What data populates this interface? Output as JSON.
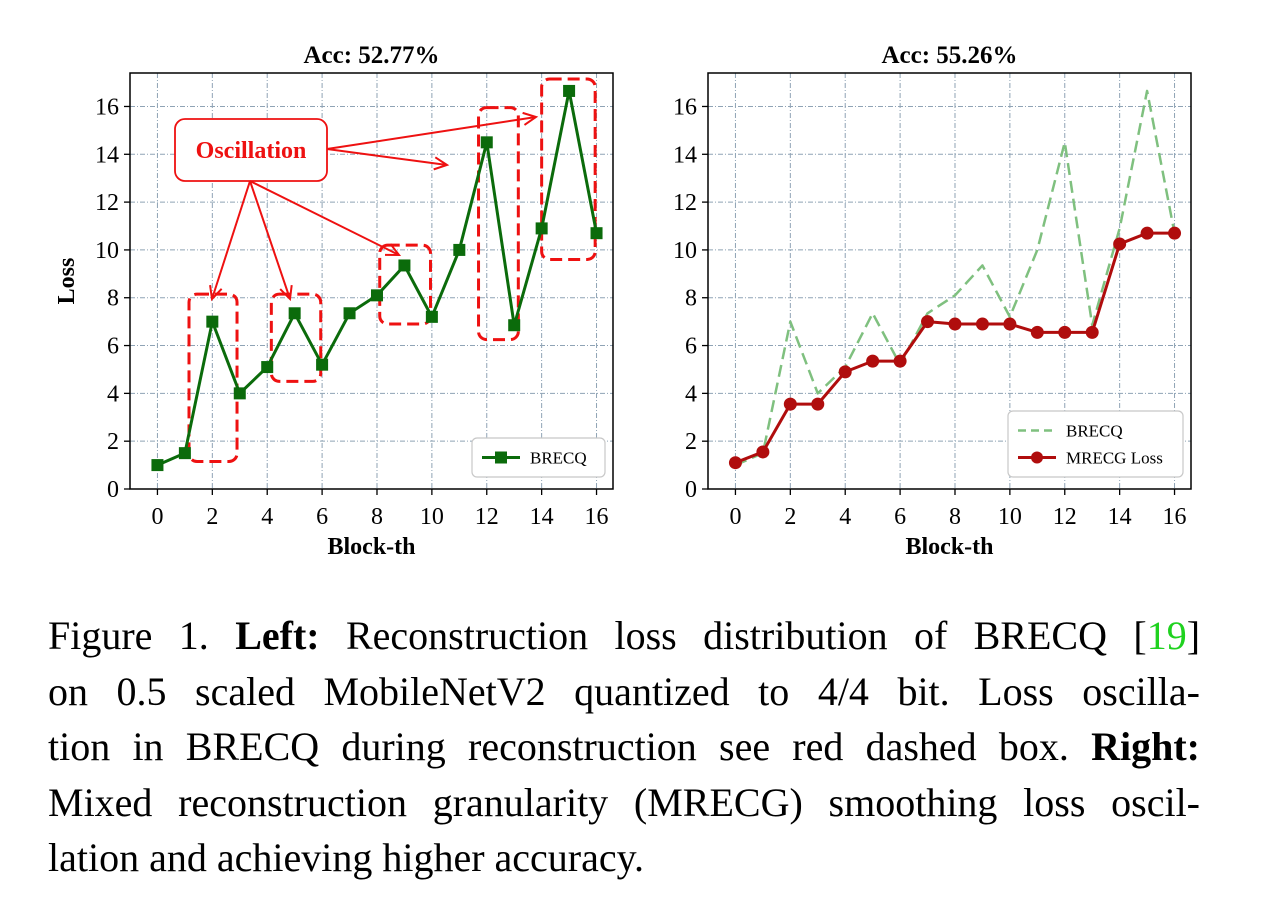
{
  "chart_data": [
    {
      "type": "line",
      "title": "Acc: 52.77%",
      "xlabel": "Block-th",
      "ylabel": "Loss",
      "xlim": [
        -1,
        16.6
      ],
      "ylim": [
        0,
        17.4
      ],
      "xticks": [
        0,
        2,
        4,
        6,
        8,
        10,
        12,
        14,
        16
      ],
      "yticks": [
        0,
        2,
        4,
        6,
        8,
        10,
        12,
        14,
        16
      ],
      "grid": true,
      "legend_position": "bottom-right",
      "series": [
        {
          "name": "BRECQ",
          "color": "#0b6b0b",
          "style": "solid",
          "marker": "square",
          "x": [
            0,
            1,
            2,
            3,
            4,
            5,
            6,
            7,
            8,
            9,
            10,
            11,
            12,
            13,
            14,
            15,
            16
          ],
          "y": [
            1.0,
            1.5,
            7.0,
            4.0,
            5.1,
            7.35,
            5.2,
            7.35,
            8.1,
            9.35,
            7.2,
            10.0,
            14.5,
            6.85,
            10.9,
            16.65,
            10.7
          ]
        }
      ],
      "annotation": {
        "label": "Oscillation",
        "color": "#ee1111",
        "boxes": [
          {
            "x": [
              1.15,
              2.9
            ],
            "y": [
              1.15,
              8.15
            ]
          },
          {
            "x": [
              4.15,
              5.95
            ],
            "y": [
              4.5,
              8.15
            ]
          },
          {
            "x": [
              8.1,
              9.95
            ],
            "y": [
              6.9,
              10.2
            ]
          },
          {
            "x": [
              11.7,
              13.15
            ],
            "y": [
              6.25,
              15.95
            ]
          },
          {
            "x": [
              14.0,
              15.95
            ],
            "y": [
              9.6,
              17.15
            ]
          }
        ]
      }
    },
    {
      "type": "line",
      "title": "Acc: 55.26%",
      "xlabel": "Block-th",
      "ylabel": "",
      "xlim": [
        -1,
        16.6
      ],
      "ylim": [
        0,
        17.4
      ],
      "xticks": [
        0,
        2,
        4,
        6,
        8,
        10,
        12,
        14,
        16
      ],
      "yticks": [
        0,
        2,
        4,
        6,
        8,
        10,
        12,
        14,
        16
      ],
      "grid": true,
      "legend_position": "bottom-right",
      "series": [
        {
          "name": "BRECQ",
          "color": "#7fc07f",
          "style": "dashed",
          "marker": "none",
          "x": [
            0,
            1,
            2,
            3,
            4,
            5,
            6,
            7,
            8,
            9,
            10,
            11,
            12,
            13,
            14,
            15,
            16
          ],
          "y": [
            1.0,
            1.5,
            7.0,
            4.0,
            5.1,
            7.35,
            5.2,
            7.35,
            8.1,
            9.35,
            7.2,
            10.0,
            14.5,
            6.85,
            10.9,
            16.65,
            10.7
          ]
        },
        {
          "name": "MRECG Loss",
          "color": "#b00d0d",
          "style": "solid",
          "marker": "circle",
          "x": [
            0,
            1,
            2,
            3,
            4,
            5,
            6,
            7,
            8,
            9,
            10,
            11,
            12,
            13,
            14,
            15,
            16
          ],
          "y": [
            1.1,
            1.55,
            3.55,
            3.55,
            4.9,
            5.35,
            5.35,
            7.0,
            6.9,
            6.9,
            6.9,
            6.55,
            6.55,
            6.55,
            10.25,
            10.7,
            10.7
          ]
        }
      ]
    }
  ],
  "caption": {
    "figure_label": "Figure 1.",
    "left_label": "Left:",
    "left_text_a": "Reconstruction loss distribution of BRECQ [",
    "citation": "19",
    "left_text_b": "]",
    "line2": "on 0.5 scaled MobileNetV2 quantized to 4/4 bit.  Loss oscilla-",
    "line3": "tion in BRECQ during reconstruction see red dashed box.",
    "right_label": "Right:",
    "line4": "Mixed reconstruction granularity (MRECG) smoothing loss oscil-",
    "line5": "lation and achieving higher accuracy."
  }
}
